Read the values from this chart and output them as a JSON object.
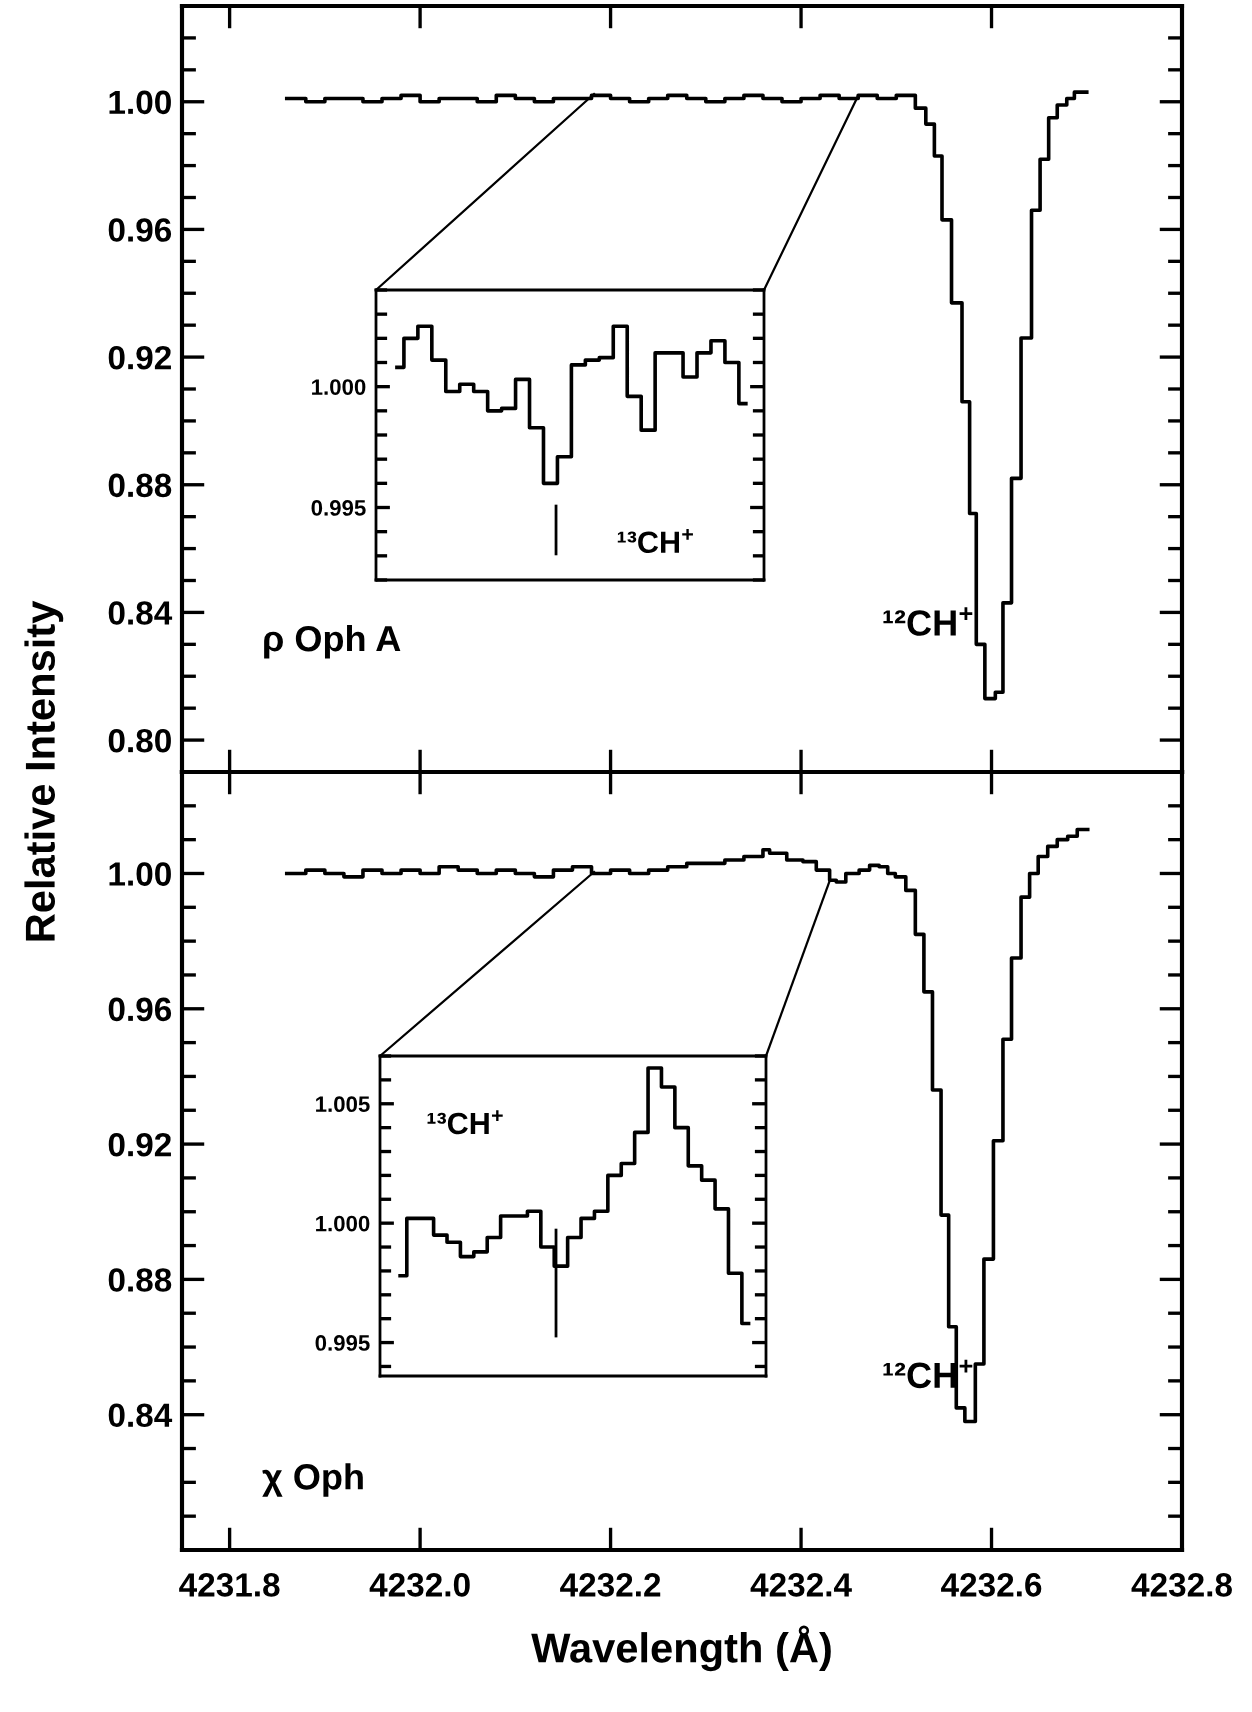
{
  "chart_data": [
    {
      "type": "step",
      "ylabel": "Relative Intensity",
      "xlim": [
        4231.75,
        4232.8
      ],
      "ylim": [
        0.79,
        1.03
      ],
      "xticks": [
        4231.8,
        4232.0,
        4232.2,
        4232.4,
        4232.6,
        4232.8
      ],
      "yticks": [
        {
          "value": 0.8,
          "label": "0.80"
        },
        {
          "value": 0.84,
          "label": "0.84"
        },
        {
          "value": 0.88,
          "label": "0.88"
        },
        {
          "value": 0.92,
          "label": "0.92"
        },
        {
          "value": 0.96,
          "label": "0.96"
        },
        {
          "value": 1.0,
          "label": "1.00"
        }
      ],
      "tick_labels": "y",
      "annotations": [
        "¹²CH$^{+}$",
        "ρ Oph A"
      ],
      "series": [
        {
          "color": "#000000",
          "x": [
            4231.86,
            4231.88,
            4231.9,
            4231.92,
            4231.94,
            4231.96,
            4231.98,
            4232.0,
            4232.02,
            4232.04,
            4232.06,
            4232.08,
            4232.1,
            4232.12,
            4232.14,
            4232.16,
            4232.18,
            4232.2,
            4232.22,
            4232.24,
            4232.26,
            4232.28,
            4232.3,
            4232.32,
            4232.34,
            4232.36,
            4232.38,
            4232.4,
            4232.42,
            4232.44,
            4232.46,
            4232.48,
            4232.5,
            4232.52,
            4232.531,
            4232.54,
            4232.548,
            4232.558,
            4232.569,
            4232.577,
            4232.584,
            4232.593,
            4232.604,
            4232.612,
            4232.621,
            4232.631,
            4232.642,
            4232.651,
            4232.66,
            4232.669,
            4232.679,
            4232.687,
            4232.7
          ],
          "values": [
            1.001,
            1.0,
            1.001,
            1.001,
            1.0,
            1.001,
            1.002,
            1.0,
            1.001,
            1.001,
            1.0,
            1.002,
            1.001,
            1.0,
            1.001,
            1.001,
            1.002,
            1.001,
            1.0,
            1.001,
            1.002,
            1.001,
            1.0,
            1.001,
            1.002,
            1.001,
            1.0,
            1.001,
            1.002,
            1.001,
            1.002,
            1.001,
            1.002,
            0.998,
            0.993,
            0.983,
            0.963,
            0.937,
            0.906,
            0.871,
            0.83,
            0.813,
            0.815,
            0.843,
            0.882,
            0.926,
            0.966,
            0.982,
            0.995,
            0.999,
            1.001,
            1.003,
            1.003
          ]
        }
      ]
    },
    {
      "type": "step",
      "ylim": [
        0.992,
        1.004
      ],
      "yticks": [
        {
          "value": 0.995,
          "label": "0.995"
        },
        {
          "value": 1.0,
          "label": "1.000"
        }
      ],
      "tick_labels": "y",
      "categories": [
        null,
        null,
        null,
        null,
        null,
        null,
        null,
        null,
        null,
        null,
        null,
        null,
        null,
        null,
        null,
        null,
        null,
        null,
        null,
        null,
        null,
        null,
        null,
        null,
        null,
        null
      ],
      "annotations": [
        "¹³CH$^{+}$"
      ],
      "series": [
        {
          "color": "#000000",
          "values": [
            1.0008,
            1.002,
            1.0025,
            1.0011,
            0.9998,
            1.0001,
            0.9998,
            0.999,
            0.9991,
            1.0003,
            0.9983,
            0.996,
            0.9971,
            1.0009,
            1.0011,
            1.0012,
            1.0025,
            0.9996,
            0.9982,
            1.0014,
            1.0014,
            1.0004,
            1.0014,
            1.0019,
            1.001,
            0.9993
          ]
        }
      ]
    },
    {
      "type": "step",
      "xlabel": "Wavelength (Å)",
      "xlim": [
        4231.75,
        4232.8
      ],
      "ylim": [
        0.8,
        1.03
      ],
      "xticks": [
        {
          "value": 4231.8,
          "label": "4231.8"
        },
        {
          "value": 4232.0,
          "label": "4232.0"
        },
        {
          "value": 4232.2,
          "label": "4232.2"
        },
        {
          "value": 4232.4,
          "label": "4232.4"
        },
        {
          "value": 4232.6,
          "label": "4232.6"
        },
        {
          "value": 4232.8,
          "label": "4232.8"
        }
      ],
      "yticks": [
        {
          "value": 0.84,
          "label": "0.84"
        },
        {
          "value": 0.88,
          "label": "0.88"
        },
        {
          "value": 0.92,
          "label": "0.92"
        },
        {
          "value": 0.96,
          "label": "0.96"
        },
        {
          "value": 1.0,
          "label": "1.00"
        }
      ],
      "annotations": [
        "¹²CH$^{+}$",
        "χ Oph"
      ],
      "series": [
        {
          "color": "#000000",
          "x": [
            4231.86,
            4231.88,
            4231.9,
            4231.92,
            4231.94,
            4231.96,
            4231.98,
            4232.0,
            4232.02,
            4232.04,
            4232.06,
            4232.08,
            4232.1,
            4232.12,
            4232.14,
            4232.16,
            4232.18,
            4232.2,
            4232.22,
            4232.24,
            4232.26,
            4232.28,
            4232.3,
            4232.32,
            4232.34,
            4232.36,
            4232.367,
            4232.385,
            4232.402,
            4232.416,
            4232.43,
            4232.437,
            4232.447,
            4232.461,
            4232.472,
            4232.482,
            4232.491,
            4232.499,
            4232.51,
            4232.52,
            4232.529,
            4232.538,
            4232.547,
            4232.555,
            4232.563,
            4232.572,
            4232.583,
            4232.592,
            4232.602,
            4232.612,
            4232.621,
            4232.631,
            4232.64,
            4232.649,
            4232.659,
            4232.669,
            4232.68,
            4232.69,
            4232.701
          ],
          "values": [
            1.0,
            1.001,
            1.0,
            0.999,
            1.001,
            1.0,
            1.001,
            1.0,
            1.002,
            1.001,
            1.0,
            1.001,
            1.0,
            0.999,
            1.001,
            1.002,
            1.0,
            1.001,
            1.0,
            1.001,
            1.002,
            1.003,
            1.003,
            1.004,
            1.005,
            1.007,
            1.006,
            1.004,
            1.0035,
            1.001,
            0.998,
            0.9975,
            1.0,
            1.001,
            1.0024,
            1.002,
            1.0,
            0.999,
            0.995,
            0.982,
            0.965,
            0.936,
            0.899,
            0.866,
            0.842,
            0.838,
            0.855,
            0.886,
            0.921,
            0.951,
            0.975,
            0.993,
            1.0,
            1.005,
            1.008,
            1.01,
            1.011,
            1.013,
            1.013
          ]
        }
      ]
    },
    {
      "type": "step",
      "ylim": [
        0.9936,
        1.007
      ],
      "yticks": [
        {
          "value": 0.995,
          "label": "0.995"
        },
        {
          "value": 1.0,
          "label": "1.000"
        },
        {
          "value": 1.005,
          "label": "1.005"
        }
      ],
      "tick_labels": "y",
      "categories": [
        null,
        null,
        null,
        null,
        null,
        null,
        null,
        null,
        null,
        null,
        null,
        null,
        null,
        null,
        null,
        null,
        null,
        null,
        null,
        null,
        null,
        null,
        null,
        null,
        null,
        null,
        null
      ],
      "annotations": [
        "¹³CH$^{+}$"
      ],
      "series": [
        {
          "color": "#000000",
          "values": [
            0.9978,
            1.0002,
            1.0002,
            0.9995,
            0.9992,
            0.9986,
            0.9988,
            0.9994,
            1.0003,
            1.0003,
            1.0005,
            0.999,
            0.9982,
            0.9994,
            1.0002,
            1.0005,
            1.002,
            1.0025,
            1.0038,
            1.0065,
            1.0057,
            1.004,
            1.0024,
            1.0018,
            1.0006,
            0.9979,
            0.9958
          ]
        }
      ]
    }
  ]
}
